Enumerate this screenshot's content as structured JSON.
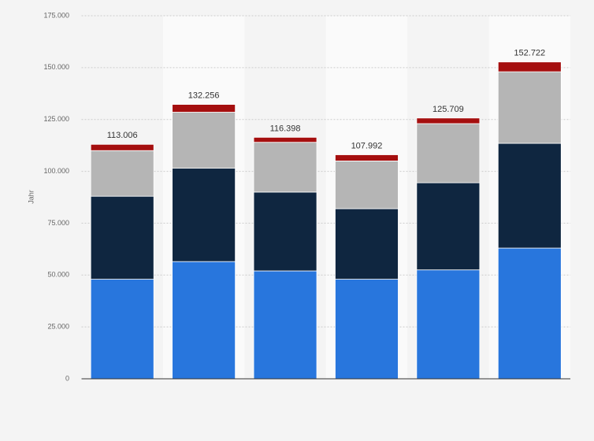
{
  "chart_data": {
    "type": "stacked-bar",
    "y_label": "Jahr",
    "categories": [
      null,
      null,
      null,
      null,
      null,
      null
    ],
    "series": [
      {
        "color": "#2876dd",
        "values": [
          48000,
          56500,
          52000,
          48000,
          52500,
          63000
        ]
      },
      {
        "color": "#0f2640",
        "values": [
          40000,
          45000,
          38000,
          34000,
          42000,
          50500
        ]
      },
      {
        "color": "#b5b5b5",
        "values": [
          22000,
          27000,
          24000,
          23000,
          28500,
          34500
        ]
      },
      {
        "color": "#a50f0f",
        "values": [
          3006,
          3756,
          2398,
          2992,
          2709,
          4722
        ]
      }
    ],
    "totals": [
      113006,
      132256,
      116398,
      107992,
      125709,
      152722
    ],
    "value_labels": [
      "113.006",
      "132.256",
      "116.398",
      "107.992",
      "125.709",
      "152.722"
    ],
    "ylim": [
      0,
      175000
    ],
    "yticks": [
      0,
      {
        "value": 25000,
        "label": "25.000"
      },
      {
        "value": 50000,
        "label": "50.000"
      },
      {
        "value": 75000,
        "label": "75.000"
      },
      {
        "value": 100000,
        "label": "100.000"
      },
      {
        "value": 125000,
        "label": "125.000"
      },
      {
        "value": 150000,
        "label": "150.000"
      },
      {
        "value": 175000,
        "label": "175.000"
      }
    ],
    "grid": true
  }
}
